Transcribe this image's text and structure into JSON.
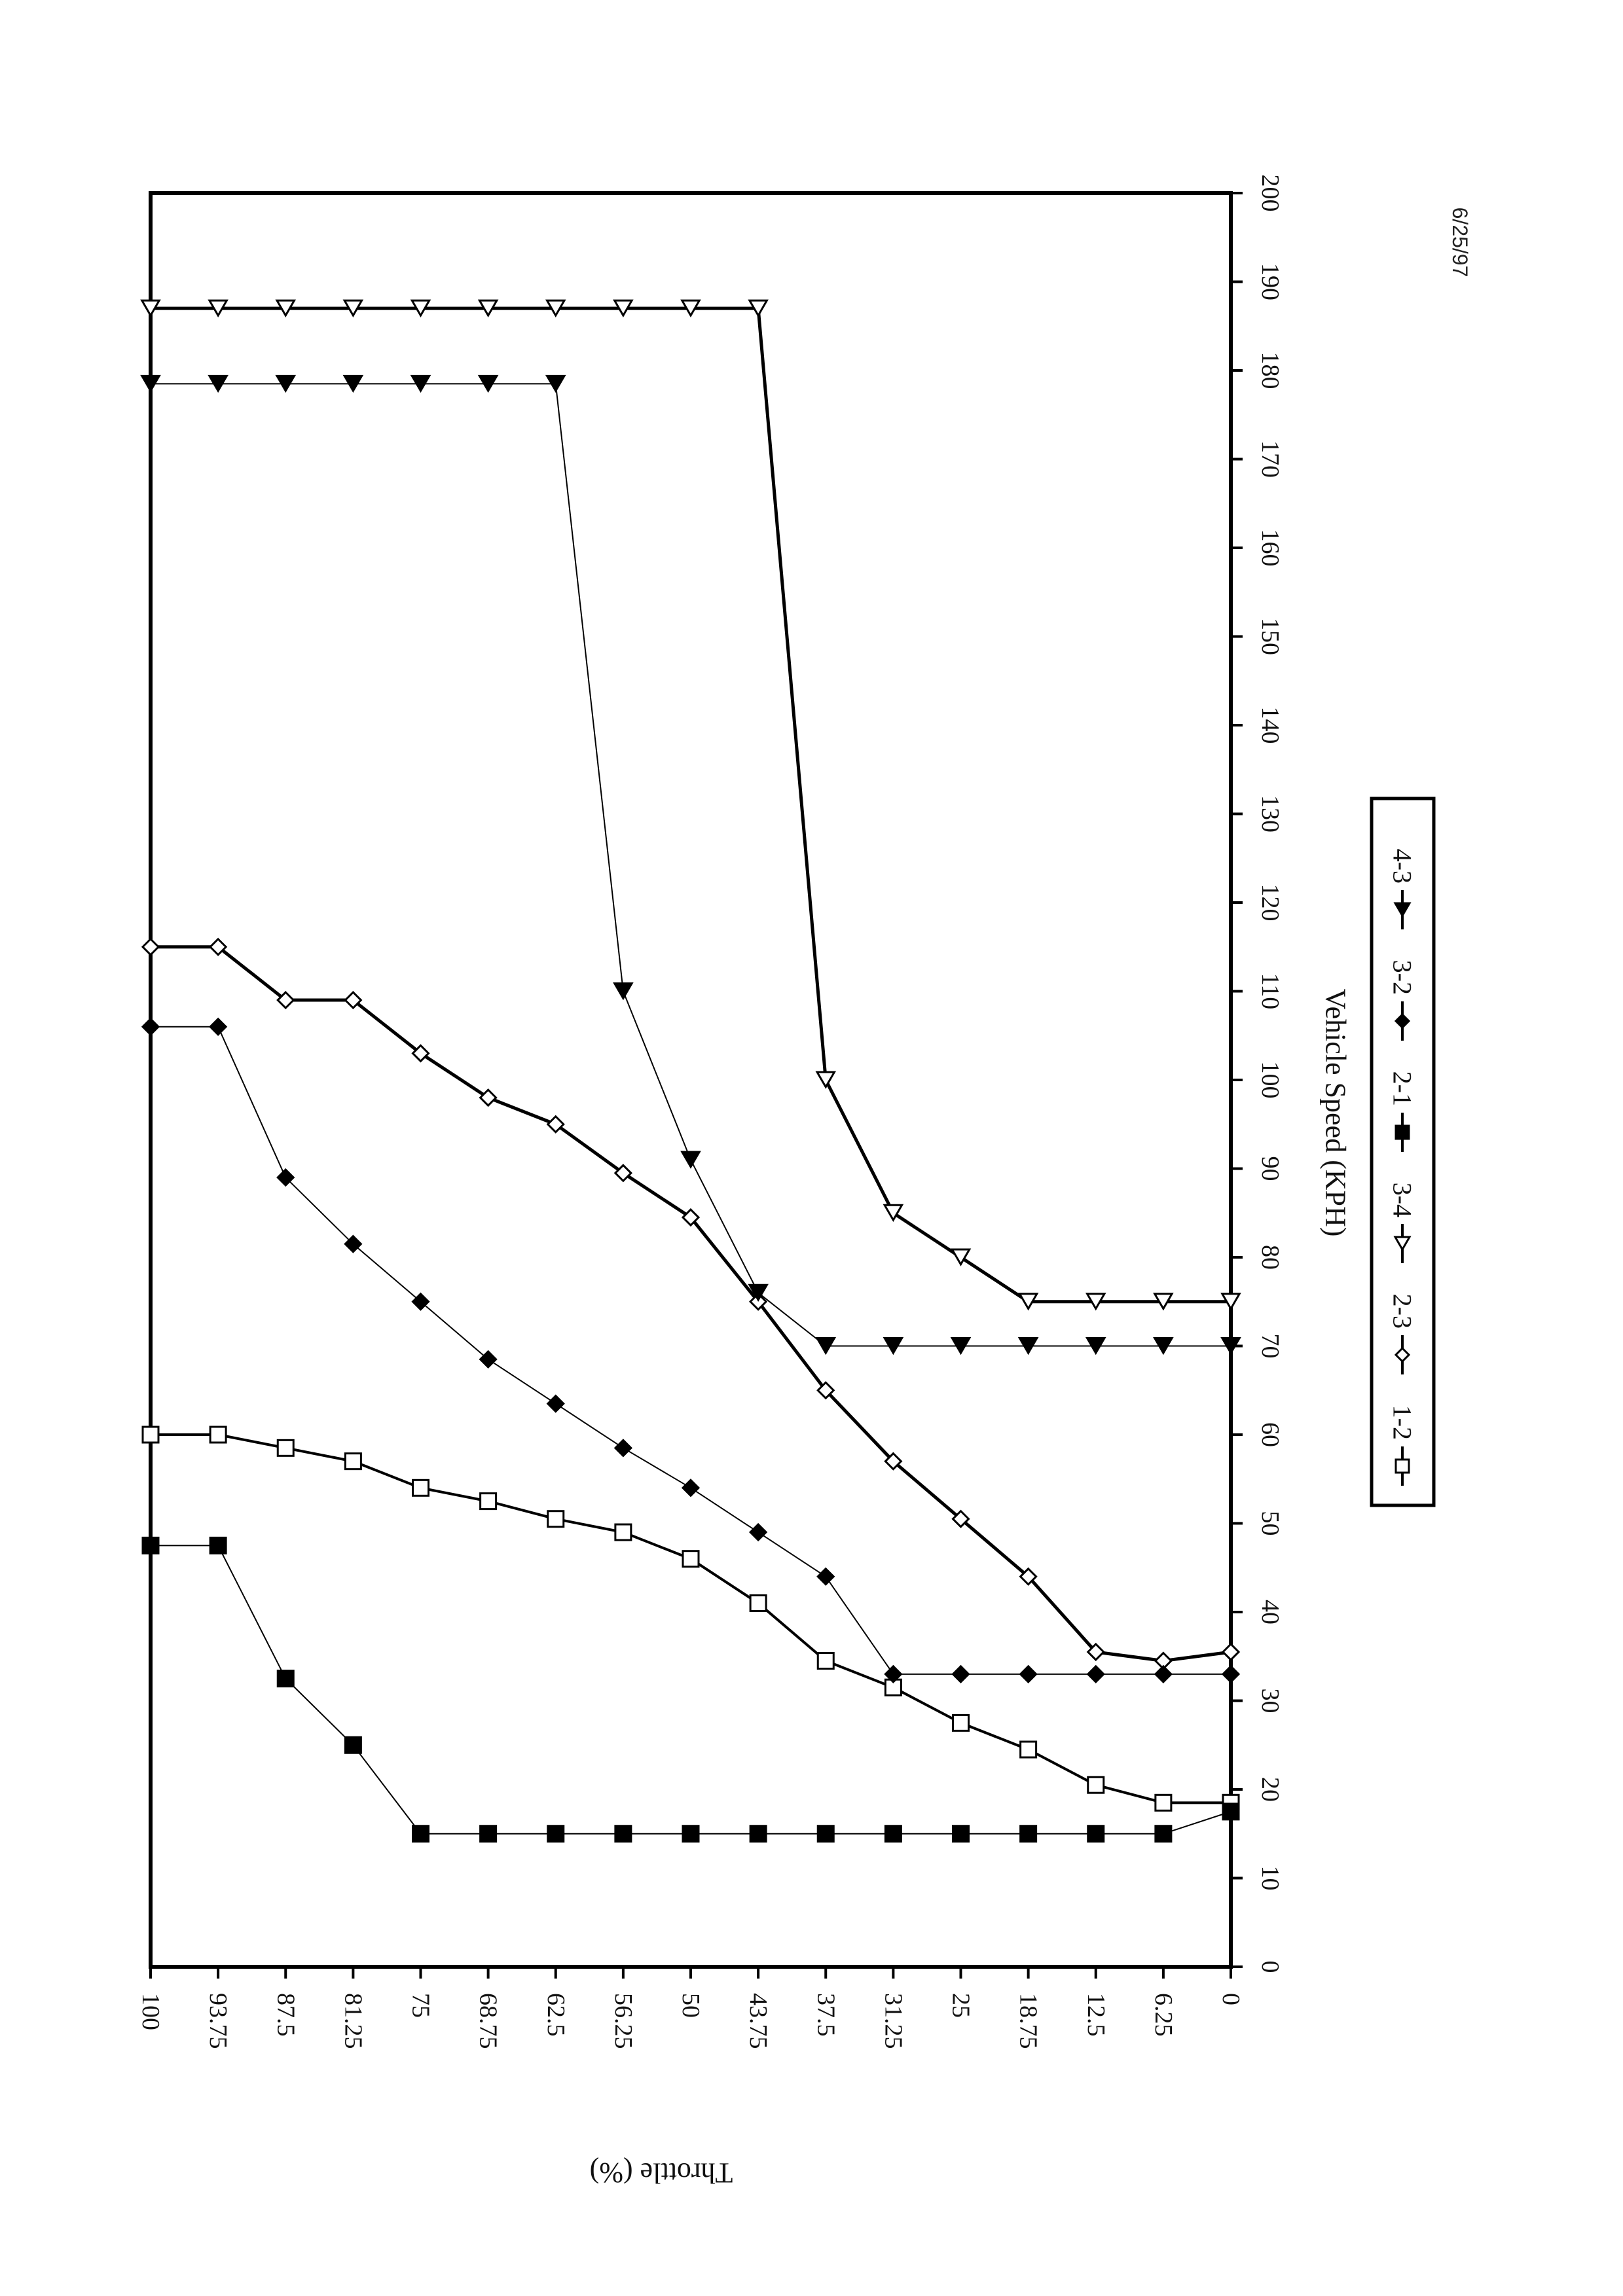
{
  "date_stamp": "6/25/97",
  "chart_data": {
    "type": "line",
    "orientation": "rotated-90-clockwise",
    "xlabel": "Vehicle Speed (KPH)",
    "ylabel": "Throttle (%)",
    "xlim": [
      0,
      200
    ],
    "ylim": [
      0,
      100
    ],
    "x_ticks": [
      "0",
      "10",
      "20",
      "30",
      "40",
      "50",
      "60",
      "70",
      "80",
      "90",
      "100",
      "110",
      "120",
      "130",
      "140",
      "150",
      "160",
      "170",
      "180",
      "190",
      "200"
    ],
    "y_ticks": [
      "100",
      "93.75",
      "87.5",
      "81.25",
      "75",
      "68.75",
      "62.5",
      "56.25",
      "50",
      "43.75",
      "37.5",
      "31.25",
      "25",
      "18.75",
      "12.5",
      "6.25",
      "0"
    ],
    "grid": false,
    "legend_position": "bottom",
    "y_values": [
      100,
      93.75,
      87.5,
      81.25,
      75,
      68.75,
      62.5,
      56.25,
      50,
      43.75,
      37.5,
      31.25,
      25,
      18.75,
      12.5,
      6.25,
      0
    ],
    "series": [
      {
        "name": "1-2",
        "marker": "open-square",
        "width": 4,
        "x": [
          60,
          60,
          58.5,
          57,
          54,
          52.5,
          50.5,
          49,
          46,
          41,
          34.5,
          31.5,
          27.5,
          24.5,
          20.5,
          18.5,
          18.5
        ]
      },
      {
        "name": "2-3",
        "marker": "open-diamond",
        "width": 5,
        "x": [
          115,
          115,
          109,
          109,
          103,
          98,
          95,
          89.5,
          84.5,
          75,
          65,
          57,
          50.5,
          44,
          35.5,
          34.5,
          35.5
        ]
      },
      {
        "name": "3-4",
        "marker": "open-triangle-left",
        "width": 5,
        "x": [
          187,
          187,
          187,
          187,
          187,
          187,
          187,
          187,
          187,
          187,
          100,
          85,
          80,
          75,
          75,
          75,
          75
        ]
      },
      {
        "name": "2-1",
        "marker": "filled-square",
        "width": 2,
        "x": [
          47.5,
          47.5,
          32.5,
          25,
          15,
          15,
          15,
          15,
          15,
          15,
          15,
          15,
          15,
          15,
          15,
          15,
          17.5
        ]
      },
      {
        "name": "3-2",
        "marker": "filled-diamond",
        "width": 2,
        "x": [
          106,
          106,
          89,
          81.5,
          75,
          68.5,
          63.5,
          58.5,
          54,
          49,
          44,
          33,
          33,
          33,
          33,
          33,
          33
        ]
      },
      {
        "name": "4-3",
        "marker": "filled-triangle-left",
        "width": 2,
        "x": [
          178.5,
          178.5,
          178.5,
          178.5,
          178.5,
          178.5,
          178.5,
          110,
          91,
          76,
          70,
          70,
          70,
          70,
          70,
          70,
          70
        ]
      }
    ]
  }
}
